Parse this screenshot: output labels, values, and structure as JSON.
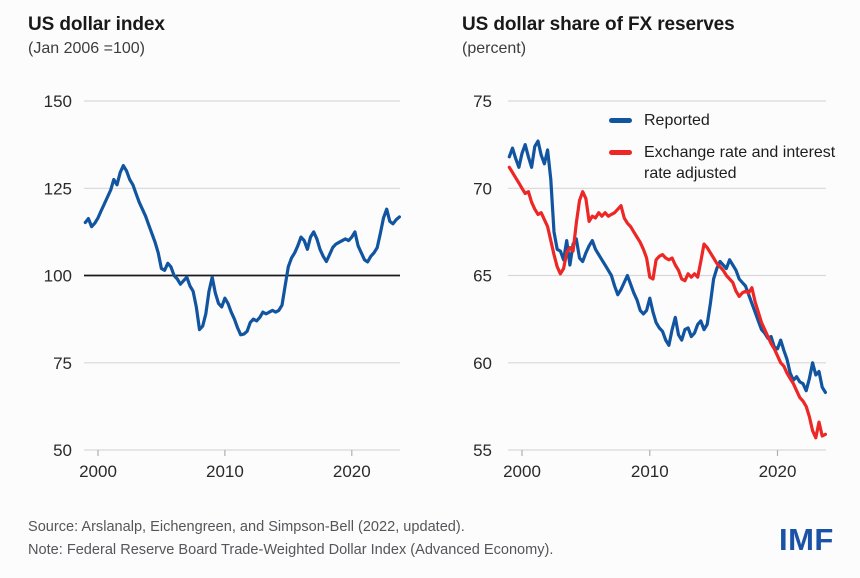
{
  "page": {
    "footer": {
      "source": "Source: Arslanalp, Eichengreen, and Simpson-Bell (2022, updated).",
      "note": "Note: Federal Reserve Board Trade-Weighted Dollar Index (Advanced Economy).",
      "logo": "IMF"
    },
    "colors": {
      "line_blue": "#1155a0",
      "line_red": "#ec2726",
      "grid": "#d8d8d8",
      "baseline": "#1a1a1a",
      "logo_blue": "#1a52a5"
    }
  },
  "chart_data": [
    {
      "type": "line",
      "title": "US dollar index",
      "subtitle": "(Jan 2006 =100)",
      "xlabel": "",
      "ylabel": "",
      "xlim": [
        1998.9,
        2023.8
      ],
      "ylim": [
        50,
        150
      ],
      "yticks": [
        50,
        75,
        100,
        125,
        150
      ],
      "xticks": [
        2000,
        2010,
        2020
      ],
      "baseline_value": 100,
      "grid": true,
      "x": [
        1999,
        1999.25,
        1999.5,
        1999.75,
        2000,
        2000.25,
        2000.5,
        2000.75,
        2001,
        2001.25,
        2001.5,
        2001.75,
        2002,
        2002.25,
        2002.5,
        2002.75,
        2003,
        2003.25,
        2003.5,
        2003.75,
        2004,
        2004.25,
        2004.5,
        2004.75,
        2005,
        2005.25,
        2005.5,
        2005.75,
        2006,
        2006.25,
        2006.5,
        2006.75,
        2007,
        2007.25,
        2007.5,
        2007.75,
        2008,
        2008.25,
        2008.5,
        2008.75,
        2009,
        2009.25,
        2009.5,
        2009.75,
        2010,
        2010.25,
        2010.5,
        2010.75,
        2011,
        2011.25,
        2011.5,
        2011.75,
        2012,
        2012.25,
        2012.5,
        2012.75,
        2013,
        2013.25,
        2013.5,
        2013.75,
        2014,
        2014.25,
        2014.5,
        2014.75,
        2015,
        2015.25,
        2015.5,
        2015.75,
        2016,
        2016.25,
        2016.5,
        2016.75,
        2017,
        2017.25,
        2017.5,
        2017.75,
        2018,
        2018.25,
        2018.5,
        2018.75,
        2019,
        2019.25,
        2019.5,
        2019.75,
        2020,
        2020.25,
        2020.5,
        2020.75,
        2021,
        2021.25,
        2021.5,
        2021.75,
        2022,
        2022.25,
        2022.5,
        2022.75,
        2023,
        2023.25,
        2023.5,
        2023.75
      ],
      "series": [
        {
          "name": "US dollar index",
          "color": "#1155a0",
          "values": [
            115.2,
            116.3,
            114.0,
            115.0,
            116.5,
            118.5,
            120.5,
            122.5,
            124.5,
            127.5,
            126.0,
            129.5,
            131.5,
            130.0,
            127.5,
            126.0,
            123.5,
            121.0,
            119.0,
            117.0,
            114.5,
            112.0,
            109.5,
            106.5,
            102.0,
            101.5,
            103.5,
            102.5,
            100.0,
            99.0,
            97.5,
            98.5,
            99.5,
            97.0,
            95.5,
            91.0,
            84.5,
            85.5,
            89.0,
            95.5,
            99.5,
            95.0,
            92.0,
            91.0,
            93.5,
            92.0,
            89.5,
            87.5,
            85.0,
            83.0,
            83.2,
            84.0,
            86.5,
            87.5,
            87.0,
            88.0,
            89.5,
            89.0,
            89.5,
            90.0,
            89.5,
            90.0,
            91.5,
            97.0,
            102.5,
            105.0,
            106.5,
            108.5,
            111.0,
            110.0,
            107.5,
            111.0,
            112.5,
            110.5,
            107.5,
            105.5,
            104.0,
            106.0,
            108.0,
            109.0,
            109.5,
            110.0,
            110.5,
            110.0,
            111.0,
            112.5,
            108.5,
            106.5,
            104.5,
            103.9,
            105.5,
            106.5,
            108.0,
            112.0,
            116.5,
            119.0,
            115.5,
            114.8,
            116.0,
            116.8
          ]
        }
      ]
    },
    {
      "type": "line",
      "title": "US dollar share of FX reserves",
      "subtitle": "(percent)",
      "xlabel": "",
      "ylabel": "",
      "xlim": [
        1998.9,
        2023.8
      ],
      "ylim": [
        55,
        75
      ],
      "yticks": [
        55,
        60,
        65,
        70,
        75
      ],
      "xticks": [
        2000,
        2010,
        2020
      ],
      "grid": true,
      "legend_position": "top-right",
      "x": [
        1999,
        1999.25,
        1999.5,
        1999.75,
        2000,
        2000.25,
        2000.5,
        2000.75,
        2001,
        2001.25,
        2001.5,
        2001.75,
        2002,
        2002.25,
        2002.5,
        2002.75,
        2003,
        2003.25,
        2003.5,
        2003.75,
        2004,
        2004.25,
        2004.5,
        2004.75,
        2005,
        2005.25,
        2005.5,
        2005.75,
        2006,
        2006.25,
        2006.5,
        2006.75,
        2007,
        2007.25,
        2007.5,
        2007.75,
        2008,
        2008.25,
        2008.5,
        2008.75,
        2009,
        2009.25,
        2009.5,
        2009.75,
        2010,
        2010.25,
        2010.5,
        2010.75,
        2011,
        2011.25,
        2011.5,
        2011.75,
        2012,
        2012.25,
        2012.5,
        2012.75,
        2013,
        2013.25,
        2013.5,
        2013.75,
        2014,
        2014.25,
        2014.5,
        2014.75,
        2015,
        2015.25,
        2015.5,
        2015.75,
        2016,
        2016.25,
        2016.5,
        2016.75,
        2017,
        2017.25,
        2017.5,
        2017.75,
        2018,
        2018.25,
        2018.5,
        2018.75,
        2019,
        2019.25,
        2019.5,
        2019.75,
        2020,
        2020.25,
        2020.5,
        2020.75,
        2021,
        2021.25,
        2021.5,
        2021.75,
        2022,
        2022.25,
        2022.5,
        2022.75,
        2023,
        2023.25,
        2023.5,
        2023.75
      ],
      "series": [
        {
          "name": "Reported",
          "color": "#1155a0",
          "values": [
            71.8,
            72.3,
            71.7,
            71.2,
            72.0,
            72.5,
            71.8,
            71.2,
            72.4,
            72.7,
            71.9,
            71.4,
            72.2,
            70.5,
            67.5,
            66.5,
            66.4,
            65.9,
            67.0,
            65.6,
            66.8,
            67.1,
            66.0,
            65.8,
            66.3,
            66.7,
            67.0,
            66.5,
            66.2,
            65.9,
            65.6,
            65.3,
            65.0,
            64.4,
            63.9,
            64.2,
            64.6,
            65.0,
            64.5,
            64.0,
            63.6,
            63.0,
            62.8,
            63.0,
            63.7,
            62.9,
            62.3,
            62.0,
            61.8,
            61.3,
            61.0,
            61.9,
            62.6,
            61.6,
            61.3,
            61.9,
            62.0,
            61.5,
            61.7,
            62.2,
            62.4,
            61.9,
            62.2,
            63.4,
            64.8,
            65.4,
            65.8,
            65.6,
            65.4,
            65.9,
            65.6,
            65.3,
            64.8,
            64.6,
            64.4,
            63.9,
            63.4,
            62.9,
            62.4,
            61.9,
            61.7,
            61.4,
            61.5,
            60.9,
            60.8,
            61.3,
            60.7,
            60.2,
            59.4,
            59.0,
            59.2,
            58.9,
            58.8,
            58.4,
            59.1,
            60.0,
            59.3,
            59.5,
            58.6,
            58.3
          ]
        },
        {
          "name": "Exchange rate and interest rate adjusted",
          "color": "#ec2726",
          "values": [
            71.2,
            70.9,
            70.6,
            70.3,
            70.0,
            69.7,
            69.8,
            69.2,
            68.8,
            68.5,
            68.6,
            68.2,
            67.8,
            67.0,
            66.2,
            65.5,
            65.1,
            65.4,
            66.3,
            66.6,
            66.4,
            68.0,
            69.3,
            69.8,
            69.4,
            68.1,
            68.4,
            68.3,
            68.6,
            68.4,
            68.6,
            68.4,
            68.5,
            68.6,
            68.8,
            69.0,
            68.3,
            68.0,
            67.8,
            67.5,
            67.2,
            66.9,
            66.5,
            66.0,
            64.9,
            64.8,
            65.9,
            66.1,
            66.2,
            66.0,
            65.9,
            66.0,
            65.6,
            65.3,
            64.8,
            64.7,
            65.1,
            64.9,
            65.1,
            64.9,
            65.8,
            66.8,
            66.6,
            66.3,
            66.0,
            65.7,
            65.5,
            65.3,
            65.0,
            64.8,
            64.6,
            64.1,
            63.8,
            64.0,
            64.1,
            64.0,
            64.3,
            63.5,
            62.9,
            62.3,
            61.9,
            61.5,
            61.1,
            60.8,
            60.4,
            60.0,
            59.8,
            59.4,
            59.1,
            58.8,
            58.4,
            58.0,
            57.8,
            57.5,
            56.9,
            56.1,
            55.7,
            56.6,
            55.8,
            55.9
          ]
        }
      ]
    }
  ]
}
